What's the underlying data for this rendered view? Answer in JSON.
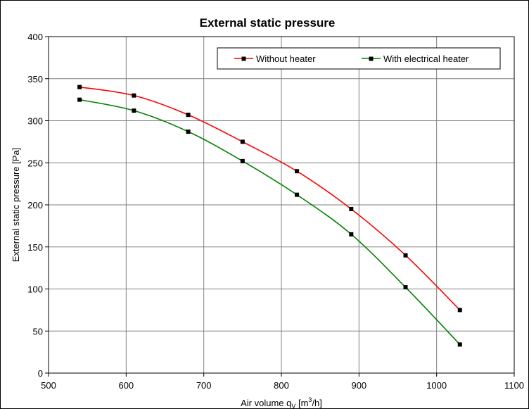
{
  "chart_data": {
    "type": "line",
    "title": "External static pressure",
    "xlabel": {
      "prefix": "Air volume q",
      "sub": "V",
      "unit_pre": " [m",
      "sup": "3",
      "unit_post": "/h]"
    },
    "ylabel": "External static pressure  [Pa]",
    "xlim": [
      500,
      1100
    ],
    "ylim": [
      0,
      400
    ],
    "xticks": [
      "500",
      "600",
      "700",
      "800",
      "900",
      "1000",
      "1100"
    ],
    "yticks": [
      "0",
      "50",
      "100",
      "150",
      "200",
      "250",
      "300",
      "350",
      "400"
    ],
    "grid": true,
    "legend_position": "top-right",
    "series": [
      {
        "name": "Without heater",
        "color": "#ff0000",
        "x": [
          540,
          610,
          680,
          750,
          820,
          890,
          960,
          1030
        ],
        "y": [
          340,
          330,
          307,
          275,
          240,
          195,
          140,
          75
        ]
      },
      {
        "name": "With electrical heater",
        "color": "#008000",
        "x": [
          540,
          610,
          680,
          750,
          820,
          890,
          960,
          1030
        ],
        "y": [
          325,
          312,
          287,
          252,
          212,
          165,
          102,
          34
        ]
      }
    ]
  }
}
